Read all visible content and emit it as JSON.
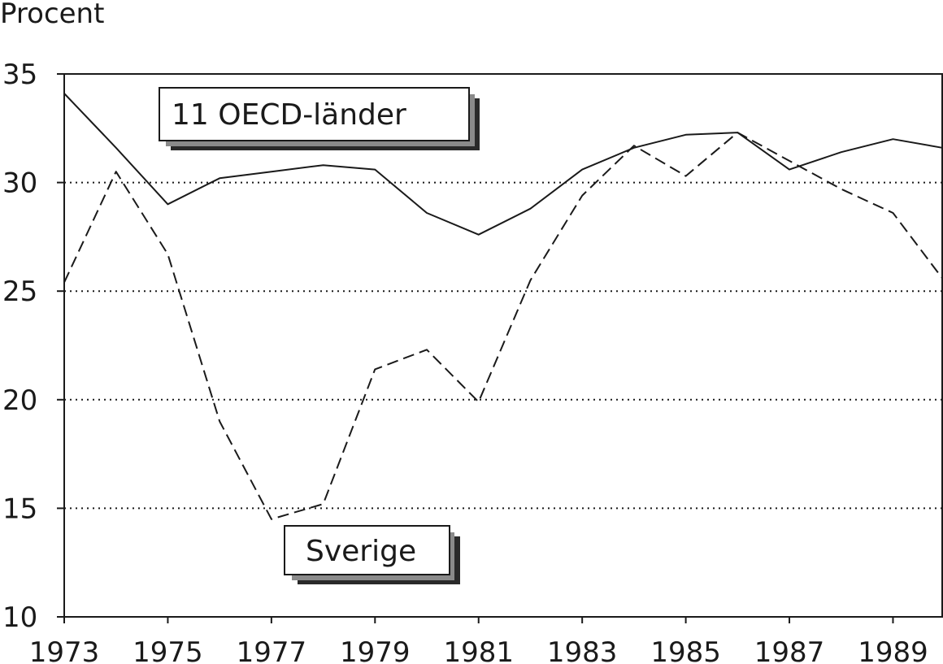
{
  "chart_data": {
    "type": "line",
    "ylabel": "Procent",
    "xlabel": "",
    "ylim": [
      10,
      35
    ],
    "xlim": [
      1973,
      1989.95
    ],
    "yticks": [
      10,
      15,
      20,
      25,
      30,
      35
    ],
    "xticks": [
      1973,
      1975,
      1977,
      1979,
      1981,
      1983,
      1985,
      1987,
      1989
    ],
    "grid": "horizontal dotted",
    "x": [
      1973,
      1974,
      1975,
      1976,
      1977,
      1978,
      1979,
      1980,
      1981,
      1982,
      1983,
      1984,
      1985,
      1986,
      1987,
      1988,
      1989,
      1990
    ],
    "series": [
      {
        "name": "11 OECD-länder",
        "style": "solid",
        "color": "#1a1a1a",
        "values": [
          34.1,
          31.6,
          29.0,
          30.2,
          30.5,
          30.8,
          30.6,
          28.6,
          27.6,
          28.8,
          30.6,
          31.6,
          32.2,
          32.3,
          30.6,
          31.4,
          32.0,
          31.6
        ]
      },
      {
        "name": "Sverige",
        "style": "dashed",
        "color": "#1a1a1a",
        "values": [
          25.4,
          30.5,
          26.7,
          19.0,
          14.5,
          15.2,
          21.4,
          22.3,
          19.9,
          25.5,
          29.4,
          31.7,
          30.3,
          32.3,
          31.0,
          29.7,
          28.6,
          25.6
        ]
      }
    ]
  },
  "labels": {
    "oecd": "11 OECD-länder",
    "sverige": "Sverige"
  }
}
